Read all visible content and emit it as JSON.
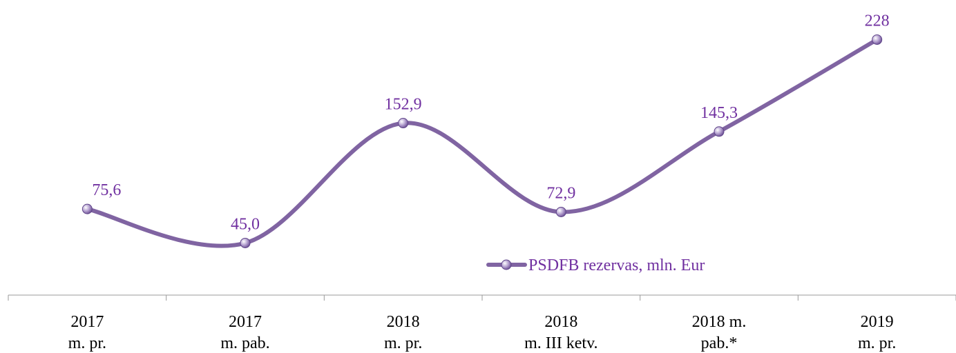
{
  "chart_data": {
    "type": "line",
    "categories": [
      [
        "2017",
        "m. pr."
      ],
      [
        "2017",
        "m. pab."
      ],
      [
        "2018",
        "m. pr."
      ],
      [
        "2018",
        "m. III ketv."
      ],
      [
        "2018 m.",
        "pab.*"
      ],
      [
        "2019",
        "m. pr."
      ]
    ],
    "series": [
      {
        "name": "PSDFB rezervas, mln. Eur",
        "color": "#8064a2",
        "values": [
          75.6,
          45.0,
          152.9,
          72.9,
          145.3,
          228
        ],
        "value_labels": [
          "75,6",
          "45,0",
          "152,9",
          "72,9",
          "145,3",
          "228"
        ]
      }
    ],
    "ylim": [
      0,
      250
    ],
    "label_color": "#7030a0"
  }
}
